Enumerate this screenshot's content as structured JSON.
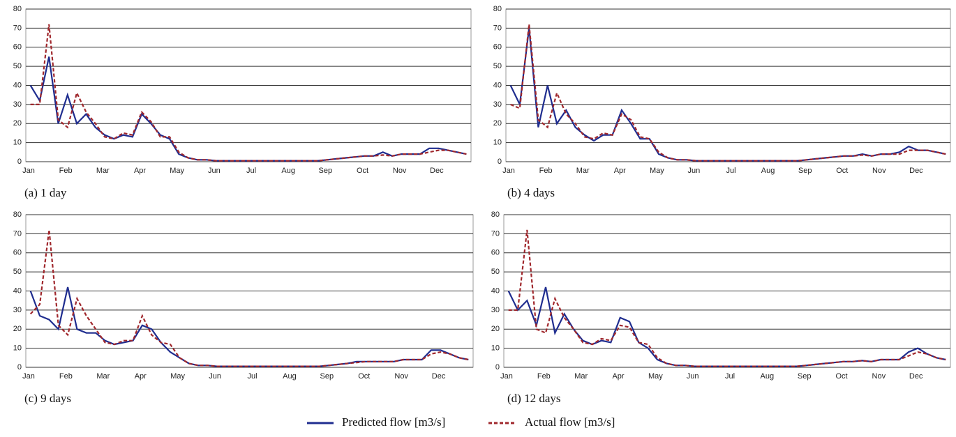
{
  "chart_data": [
    {
      "type": "line",
      "title": "(a) 1 day",
      "categories": [
        "Jan",
        null,
        null,
        null,
        "Feb",
        null,
        null,
        null,
        "Mar",
        null,
        null,
        null,
        "Apr",
        null,
        null,
        null,
        "May",
        null,
        null,
        null,
        "Jun",
        null,
        null,
        null,
        "Jul",
        null,
        null,
        null,
        "Aug",
        null,
        null,
        null,
        "Sep",
        null,
        null,
        null,
        "Oct",
        null,
        null,
        null,
        "Nov",
        null,
        null,
        null,
        "Dec",
        null,
        null,
        null
      ],
      "ylim": [
        0,
        80
      ],
      "yticks": [
        0,
        10,
        20,
        30,
        40,
        50,
        60,
        70,
        80
      ],
      "grid": true,
      "series": [
        {
          "name": "Predicted flow [m3/s]",
          "color": "#1f2d8f",
          "values": [
            40,
            32,
            55,
            20,
            35,
            20,
            25,
            18,
            14,
            12,
            14,
            13,
            25,
            20,
            14,
            12,
            4,
            2,
            1,
            1,
            0.5,
            0.5,
            0.5,
            0.5,
            0.5,
            0.5,
            0.5,
            0.5,
            0.5,
            0.5,
            0.5,
            0.5,
            1,
            1.5,
            2,
            2.5,
            3,
            3,
            5,
            3,
            4,
            4,
            4,
            7,
            7,
            6,
            5,
            4
          ]
        },
        {
          "name": "Actual flow [m3/s]",
          "color": "#a0282d",
          "values": [
            30,
            30,
            72,
            22,
            18,
            36,
            26,
            20,
            13,
            12,
            15,
            14,
            26,
            21,
            13,
            13,
            5,
            2,
            1,
            1,
            0.5,
            0.5,
            0.5,
            0.5,
            0.5,
            0.5,
            0.5,
            0.5,
            0.5,
            0.5,
            0.5,
            0.5,
            1,
            1.5,
            2,
            2.5,
            3,
            3,
            3.5,
            3,
            4,
            4,
            4,
            5,
            6,
            6,
            5,
            4
          ]
        }
      ]
    },
    {
      "type": "line",
      "title": "(b) 4 days",
      "categories": [
        "Jan",
        null,
        null,
        null,
        "Feb",
        null,
        null,
        null,
        "Mar",
        null,
        null,
        null,
        "Apr",
        null,
        null,
        null,
        "May",
        null,
        null,
        null,
        "Jun",
        null,
        null,
        null,
        "Jul",
        null,
        null,
        null,
        "Aug",
        null,
        null,
        null,
        "Sep",
        null,
        null,
        null,
        "Oct",
        null,
        null,
        null,
        "Nov",
        null,
        null,
        null,
        "Dec",
        null,
        null,
        null
      ],
      "ylim": [
        0,
        80
      ],
      "yticks": [
        0,
        10,
        20,
        30,
        40,
        50,
        60,
        70,
        80
      ],
      "grid": true,
      "series": [
        {
          "color": "#1f2d8f",
          "values": [
            40,
            30,
            70,
            18,
            40,
            20,
            27,
            18,
            14,
            11,
            14,
            14,
            27,
            20,
            12,
            12,
            4,
            2,
            1,
            1,
            0.5,
            0.5,
            0.5,
            0.5,
            0.5,
            0.5,
            0.5,
            0.5,
            0.5,
            0.5,
            0.5,
            0.5,
            1,
            1.5,
            2,
            2.5,
            3,
            3,
            4,
            3,
            4,
            4,
            5,
            8,
            6,
            6,
            5,
            4
          ]
        },
        {
          "color": "#a0282d",
          "values": [
            30,
            28,
            72,
            22,
            18,
            36,
            25,
            20,
            13,
            12,
            15,
            14,
            25,
            22,
            13,
            12,
            5,
            2,
            1,
            1,
            0.5,
            0.5,
            0.5,
            0.5,
            0.5,
            0.5,
            0.5,
            0.5,
            0.5,
            0.5,
            0.5,
            0.5,
            1,
            1.5,
            2,
            2.5,
            3,
            3,
            3.5,
            3,
            4,
            4,
            4,
            6,
            6,
            6,
            5,
            4
          ]
        }
      ]
    },
    {
      "type": "line",
      "title": "(c) 9 days",
      "categories": [
        "Jan",
        null,
        null,
        null,
        "Feb",
        null,
        null,
        null,
        "Mar",
        null,
        null,
        null,
        "Apr",
        null,
        null,
        null,
        "May",
        null,
        null,
        null,
        "Jun",
        null,
        null,
        null,
        "Jul",
        null,
        null,
        null,
        "Aug",
        null,
        null,
        null,
        "Sep",
        null,
        null,
        null,
        "Oct",
        null,
        null,
        null,
        "Nov",
        null,
        null,
        null,
        "Dec",
        null,
        null,
        null
      ],
      "ylim": [
        0,
        80
      ],
      "yticks": [
        0,
        10,
        20,
        30,
        40,
        50,
        60,
        70,
        80
      ],
      "grid": true,
      "series": [
        {
          "color": "#1f2d8f",
          "values": [
            40,
            27,
            25,
            20,
            42,
            20,
            18,
            18,
            14,
            12,
            13,
            14,
            22,
            20,
            13,
            8,
            5,
            2,
            1,
            1,
            0.5,
            0.5,
            0.5,
            0.5,
            0.5,
            0.5,
            0.5,
            0.5,
            0.5,
            0.5,
            0.5,
            0.5,
            1,
            1.5,
            2,
            3,
            3,
            3,
            3,
            3,
            4,
            4,
            4,
            9,
            9,
            7,
            5,
            4
          ]
        },
        {
          "color": "#a0282d",
          "values": [
            28,
            33,
            72,
            22,
            17,
            36,
            27,
            20,
            13,
            12,
            14,
            14,
            27,
            17,
            13,
            12,
            5,
            2,
            1,
            1,
            0.5,
            0.5,
            0.5,
            0.5,
            0.5,
            0.5,
            0.5,
            0.5,
            0.5,
            0.5,
            0.5,
            0.5,
            1,
            1.5,
            2,
            2.5,
            3,
            3,
            3,
            3,
            4,
            4,
            4,
            7,
            8,
            7,
            5,
            4
          ]
        }
      ]
    },
    {
      "type": "line",
      "title": "(d) 12 days",
      "categories": [
        "Jan",
        null,
        null,
        null,
        "Feb",
        null,
        null,
        null,
        "Mar",
        null,
        null,
        null,
        "Apr",
        null,
        null,
        null,
        "May",
        null,
        null,
        null,
        "Jun",
        null,
        null,
        null,
        "Jul",
        null,
        null,
        null,
        "Aug",
        null,
        null,
        null,
        "Sep",
        null,
        null,
        null,
        "Oct",
        null,
        null,
        null,
        "Nov",
        null,
        null,
        null,
        "Dec",
        null,
        null,
        null
      ],
      "ylim": [
        0,
        80
      ],
      "yticks": [
        0,
        10,
        20,
        30,
        40,
        50,
        60,
        70,
        80
      ],
      "grid": true,
      "series": [
        {
          "color": "#1f2d8f",
          "values": [
            40,
            30,
            35,
            22,
            42,
            18,
            28,
            20,
            14,
            12,
            14,
            13,
            26,
            24,
            13,
            10,
            4,
            2,
            1,
            1,
            0.5,
            0.5,
            0.5,
            0.5,
            0.5,
            0.5,
            0.5,
            0.5,
            0.5,
            0.5,
            0.5,
            0.5,
            1,
            1.5,
            2,
            2.5,
            3,
            3,
            3.5,
            3,
            4,
            4,
            4,
            8,
            10,
            7,
            5,
            4
          ]
        },
        {
          "color": "#a0282d",
          "values": [
            30,
            30,
            72,
            20,
            18,
            36,
            26,
            20,
            13,
            12,
            15,
            14,
            22,
            21,
            13,
            12,
            5,
            2,
            1,
            1,
            0.5,
            0.5,
            0.5,
            0.5,
            0.5,
            0.5,
            0.5,
            0.5,
            0.5,
            0.5,
            0.5,
            0.5,
            1,
            1.5,
            2,
            2.5,
            3,
            3,
            3.5,
            3,
            4,
            4,
            4,
            6,
            8,
            7,
            5,
            4
          ]
        }
      ]
    }
  ]
}
